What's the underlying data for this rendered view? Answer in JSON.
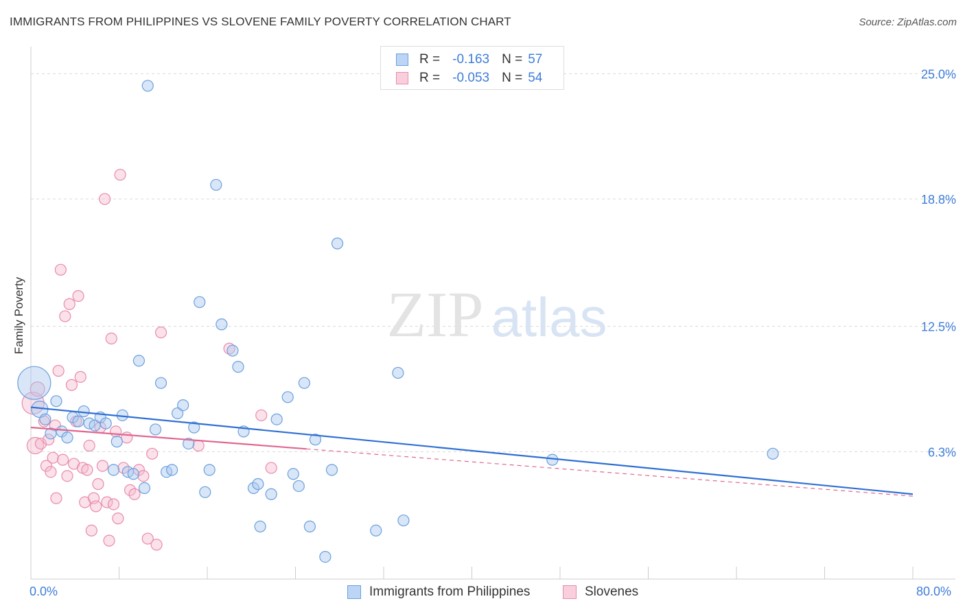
{
  "title": "IMMIGRANTS FROM PHILIPPINES VS SLOVENE FAMILY POVERTY CORRELATION CHART",
  "source": "Source: ZipAtlas.com",
  "watermark": {
    "zip": "ZIP",
    "atlas": "atlas"
  },
  "legend": {
    "series1": {
      "r_label": "R =",
      "r_value": "-0.163",
      "n_label": "N =",
      "n_value": "57"
    },
    "series2": {
      "r_label": "R =",
      "r_value": "-0.053",
      "n_label": "N =",
      "n_value": "54"
    }
  },
  "bottom_legend": {
    "series1": "Immigrants from Philippines",
    "series2": "Slovenes"
  },
  "colors": {
    "blue_fill": "#a9c8f0",
    "blue_stroke": "#6b9fde",
    "blue_line": "#2f6fd4",
    "pink_fill": "#f5bcd0",
    "pink_stroke": "#e98aab",
    "pink_line": "#e0668f",
    "accent_text": "#3d7dd8",
    "grid": "#d9d9d9"
  },
  "chart_data": {
    "type": "scatter",
    "title": "IMMIGRANTS FROM PHILIPPINES VS SLOVENE FAMILY POVERTY CORRELATION CHART",
    "xlabel": "",
    "ylabel": "Family Poverty",
    "xlim": [
      0,
      80
    ],
    "ylim": [
      0,
      26.2
    ],
    "x_tick_labels": [
      "0.0%",
      "80.0%"
    ],
    "y_tick_labels": [
      "25.0%",
      "18.8%",
      "12.5%",
      "6.3%"
    ],
    "y_ticks": [
      25.0,
      18.8,
      12.5,
      6.3
    ],
    "grid": true,
    "legend_position": "top-center",
    "series": [
      {
        "name": "Immigrants from Philippines",
        "r": -0.163,
        "n": 57,
        "trend": {
          "x0": 0,
          "y0": 8.5,
          "x1": 80,
          "y1": 4.2,
          "solid_until": 80
        },
        "points": [
          [
            0.3,
            9.7,
            3
          ],
          [
            0.8,
            8.4,
            1.5
          ],
          [
            1.3,
            7.9,
            1
          ],
          [
            1.8,
            7.2,
            1
          ],
          [
            2.3,
            8.8,
            1
          ],
          [
            2.8,
            7.3,
            1
          ],
          [
            3.3,
            7.0,
            1
          ],
          [
            3.8,
            8.0,
            1
          ],
          [
            4.3,
            7.8,
            1
          ],
          [
            4.8,
            8.3,
            1
          ],
          [
            5.3,
            7.7,
            1
          ],
          [
            5.8,
            7.6,
            1
          ],
          [
            6.3,
            8.0,
            1
          ],
          [
            6.8,
            7.7,
            1
          ],
          [
            7.5,
            5.4,
            1
          ],
          [
            7.8,
            6.8,
            1
          ],
          [
            8.3,
            8.1,
            1
          ],
          [
            8.8,
            5.3,
            1
          ],
          [
            9.3,
            5.2,
            1
          ],
          [
            9.8,
            10.8,
            1
          ],
          [
            10.3,
            4.5,
            1
          ],
          [
            10.6,
            24.4,
            1
          ],
          [
            11.3,
            7.4,
            1
          ],
          [
            11.8,
            9.7,
            1
          ],
          [
            12.3,
            5.3,
            1
          ],
          [
            12.8,
            5.4,
            1
          ],
          [
            13.3,
            8.2,
            1
          ],
          [
            13.8,
            8.6,
            1
          ],
          [
            14.3,
            6.7,
            1
          ],
          [
            14.8,
            7.5,
            1
          ],
          [
            15.3,
            13.7,
            1
          ],
          [
            15.8,
            4.3,
            1
          ],
          [
            16.2,
            5.4,
            1
          ],
          [
            16.8,
            19.5,
            1
          ],
          [
            17.3,
            12.6,
            1
          ],
          [
            18.3,
            11.3,
            1
          ],
          [
            18.8,
            10.5,
            1
          ],
          [
            19.3,
            7.3,
            1
          ],
          [
            20.2,
            4.5,
            1
          ],
          [
            20.6,
            4.7,
            1
          ],
          [
            20.8,
            2.6,
            1
          ],
          [
            21.8,
            4.2,
            1
          ],
          [
            22.3,
            7.9,
            1
          ],
          [
            23.3,
            9.0,
            1
          ],
          [
            23.8,
            5.2,
            1
          ],
          [
            24.3,
            4.6,
            1
          ],
          [
            24.8,
            9.7,
            1
          ],
          [
            25.3,
            2.6,
            1
          ],
          [
            25.8,
            6.9,
            1
          ],
          [
            26.7,
            1.1,
            1
          ],
          [
            27.3,
            5.4,
            1
          ],
          [
            27.8,
            16.6,
            1
          ],
          [
            31.3,
            2.4,
            1
          ],
          [
            33.3,
            10.2,
            1
          ],
          [
            33.8,
            2.9,
            1
          ],
          [
            47.3,
            5.9,
            1
          ],
          [
            67.3,
            6.2,
            1
          ]
        ]
      },
      {
        "name": "Slovenes",
        "r": -0.053,
        "n": 54,
        "trend": {
          "x0": 0,
          "y0": 7.5,
          "x1": 80,
          "y1": 4.1,
          "solid_until": 25
        },
        "points": [
          [
            0.2,
            8.7,
            2
          ],
          [
            0.4,
            6.6,
            1.5
          ],
          [
            0.6,
            9.4,
            1.3
          ],
          [
            0.9,
            6.7,
            1
          ],
          [
            1.2,
            7.8,
            1
          ],
          [
            1.4,
            5.6,
            1
          ],
          [
            1.6,
            6.9,
            1
          ],
          [
            1.8,
            5.3,
            1
          ],
          [
            2.0,
            6.0,
            1
          ],
          [
            2.2,
            7.6,
            1
          ],
          [
            2.3,
            4.0,
            1
          ],
          [
            2.5,
            10.3,
            1
          ],
          [
            2.7,
            15.3,
            1
          ],
          [
            2.9,
            5.9,
            1
          ],
          [
            3.1,
            13.0,
            1
          ],
          [
            3.3,
            5.1,
            1
          ],
          [
            3.5,
            13.6,
            1
          ],
          [
            3.7,
            9.6,
            1
          ],
          [
            3.9,
            5.7,
            1
          ],
          [
            4.1,
            7.8,
            1
          ],
          [
            4.3,
            14.0,
            1
          ],
          [
            4.5,
            10.0,
            1
          ],
          [
            4.7,
            5.5,
            1
          ],
          [
            4.9,
            3.8,
            1
          ],
          [
            5.1,
            5.4,
            1
          ],
          [
            5.3,
            6.6,
            1
          ],
          [
            5.5,
            2.4,
            1
          ],
          [
            5.7,
            4.0,
            1
          ],
          [
            5.9,
            3.6,
            1
          ],
          [
            6.1,
            4.7,
            1
          ],
          [
            6.3,
            7.5,
            1
          ],
          [
            6.5,
            5.6,
            1
          ],
          [
            6.7,
            18.8,
            1
          ],
          [
            6.9,
            3.8,
            1
          ],
          [
            7.1,
            1.9,
            1
          ],
          [
            7.3,
            11.9,
            1
          ],
          [
            7.5,
            3.7,
            1
          ],
          [
            7.7,
            7.3,
            1
          ],
          [
            7.9,
            3.0,
            1
          ],
          [
            8.1,
            20.0,
            1
          ],
          [
            8.4,
            5.5,
            1
          ],
          [
            8.7,
            7.0,
            1
          ],
          [
            9.0,
            4.4,
            1
          ],
          [
            9.4,
            4.2,
            1
          ],
          [
            9.8,
            5.4,
            1
          ],
          [
            10.2,
            5.1,
            1
          ],
          [
            10.6,
            2.0,
            1
          ],
          [
            11.0,
            6.2,
            1
          ],
          [
            11.4,
            1.7,
            1
          ],
          [
            11.8,
            12.2,
            1
          ],
          [
            18.0,
            11.4,
            1
          ],
          [
            20.9,
            8.1,
            1
          ],
          [
            21.8,
            5.5,
            1
          ],
          [
            15.2,
            6.6,
            1
          ]
        ]
      }
    ]
  }
}
